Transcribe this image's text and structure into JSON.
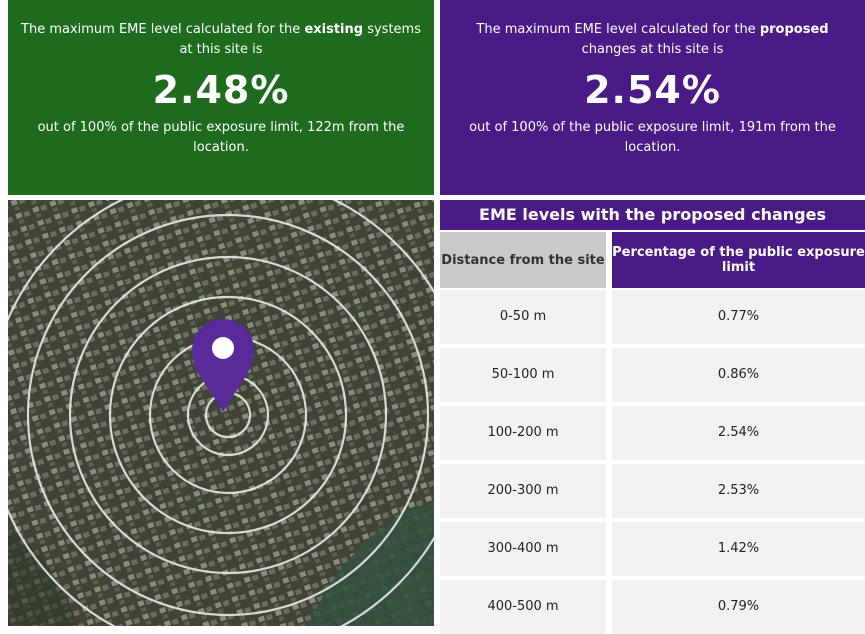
{
  "existing": {
    "intro_before": "The maximum EME level calculated for the ",
    "intro_bold": "existing",
    "intro_after": " systems at this site is",
    "value": "2.48%",
    "footer": "out of 100% of the public exposure limit, 122m from the location."
  },
  "proposed": {
    "intro_before": "The maximum EME level calculated for the ",
    "intro_bold": "proposed",
    "intro_after": " changes at this site is",
    "value": "2.54%",
    "footer": "out of 100% of the public exposure limit, 191m from the location."
  },
  "table": {
    "title": "EME levels with the proposed changes",
    "headers": [
      "Distance from the site",
      "Percentage of the public exposure limit"
    ],
    "rows": [
      [
        "0-50 m",
        "0.77%"
      ],
      [
        "50-100 m",
        "0.86%"
      ],
      [
        "100-200 m",
        "2.54%"
      ],
      [
        "200-300 m",
        "2.53%"
      ],
      [
        "300-400 m",
        "1.42%"
      ],
      [
        "400-500 m",
        "0.79%"
      ]
    ]
  }
}
